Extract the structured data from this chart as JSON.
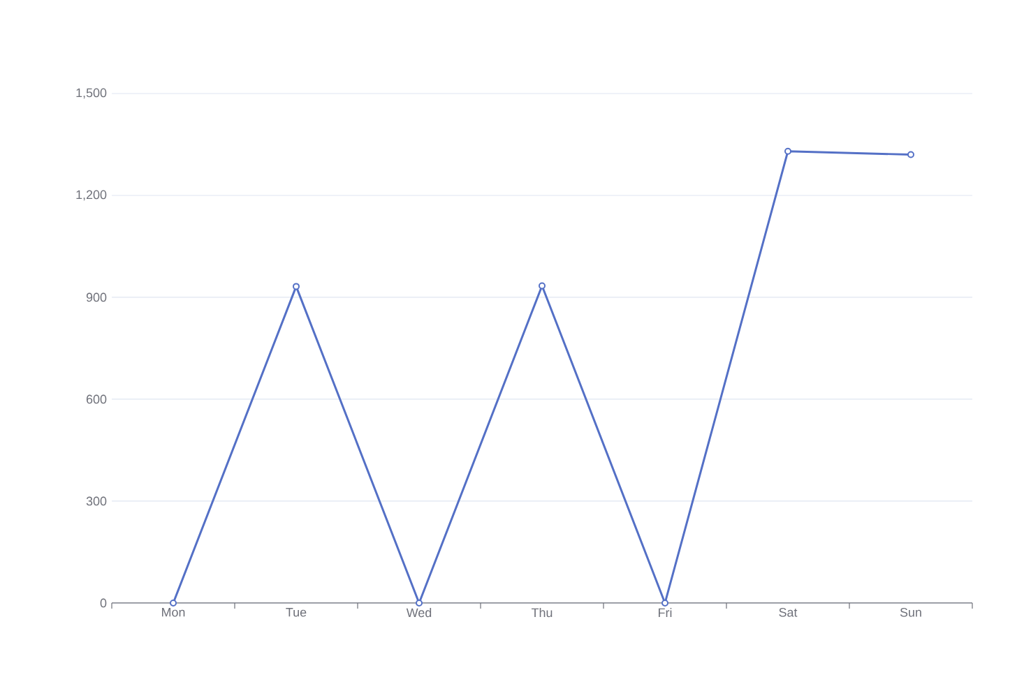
{
  "chart_data": {
    "type": "line",
    "categories": [
      "Mon",
      "Tue",
      "Wed",
      "Thu",
      "Fri",
      "Sat",
      "Sun"
    ],
    "series": [
      {
        "color": "#5470c6",
        "values": [
          0,
          932,
          0,
          934,
          0,
          1330,
          1320
        ]
      }
    ],
    "ylim": [
      0,
      1500
    ],
    "yticks": [
      0,
      300,
      600,
      900,
      {
        "value": 1200,
        "label": "1,200"
      },
      {
        "value": 1500,
        "label": "1,500"
      }
    ],
    "grid": "y",
    "marker": "circle",
    "line_style": "solid"
  }
}
